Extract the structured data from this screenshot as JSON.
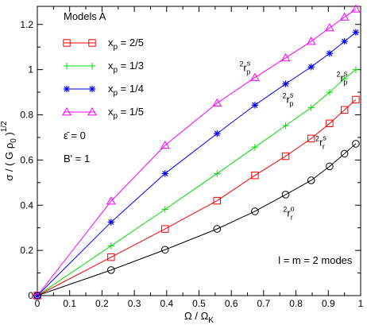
{
  "chart_data": {
    "type": "line",
    "title": "",
    "xlabel": {
      "main": "Ω / Ω",
      "sub": "K"
    },
    "ylabel": {
      "pre": "σ / ( G ρ",
      "sub": "0",
      "post": " )",
      "sup": "1/2"
    },
    "xlim": [
      0,
      1.0
    ],
    "ylim": [
      0,
      1.28
    ],
    "xticks": [
      0,
      0.1,
      0.2,
      0.3,
      0.4,
      0.5,
      0.6,
      0.7,
      0.8,
      0.9,
      1
    ],
    "xtick_labels": [
      "0",
      "0.1",
      "0.2",
      "0.3",
      "0.4",
      "0.5",
      "0.6",
      "0.7",
      "0.8",
      "0.9",
      "1"
    ],
    "yticks": [
      0,
      0.2,
      0.4,
      0.6,
      0.8,
      1.0,
      1.2
    ],
    "ytick_labels": [
      "0",
      "0.2",
      "0.4",
      "0.6",
      "0.8",
      "1",
      "1.2"
    ],
    "legend": {
      "placement": "top-left",
      "title": "Models A",
      "extra": [
        "ε̄ = 0",
        "B' = 1"
      ]
    },
    "series": [
      {
        "name": "x_p = 2/5",
        "label_main": "x",
        "label_sub": "p",
        "label_rest": " = 2/5",
        "color": "#ff0000",
        "marker": "square",
        "x": [
          0,
          0.228,
          0.395,
          0.556,
          0.673,
          0.768,
          0.847,
          0.904,
          0.95,
          0.985
        ],
        "y": [
          0,
          0.17,
          0.295,
          0.42,
          0.532,
          0.617,
          0.695,
          0.762,
          0.822,
          0.867
        ]
      },
      {
        "name": "x_p = 1/3",
        "label_main": "x",
        "label_sub": "p",
        "label_rest": " = 1/3",
        "color": "#00dd00",
        "marker": "plus",
        "x": [
          0,
          0.228,
          0.395,
          0.556,
          0.673,
          0.768,
          0.847,
          0.904,
          0.95,
          0.985
        ],
        "y": [
          0,
          0.22,
          0.382,
          0.54,
          0.657,
          0.752,
          0.832,
          0.9,
          0.96,
          1.0
        ]
      },
      {
        "name": "x_p = 1/4",
        "label_main": "x",
        "label_sub": "p",
        "label_rest": " = 1/4",
        "color": "#0000ff",
        "marker": "star",
        "x": [
          0,
          0.228,
          0.395,
          0.556,
          0.673,
          0.768,
          0.847,
          0.904,
          0.95,
          0.985
        ],
        "y": [
          0,
          0.325,
          0.54,
          0.717,
          0.843,
          0.937,
          1.012,
          1.072,
          1.125,
          1.165
        ]
      },
      {
        "name": "x_p = 1/5",
        "label_main": "x",
        "label_sub": "p",
        "label_rest": " = 1/5",
        "color": "#ff00ff",
        "marker": "triangle",
        "x": [
          0,
          0.228,
          0.395,
          0.556,
          0.673,
          0.768,
          0.847,
          0.904,
          0.95,
          0.985
        ],
        "y": [
          0,
          0.418,
          0.665,
          0.852,
          0.965,
          1.052,
          1.125,
          1.185,
          1.232,
          1.268
        ]
      },
      {
        "name": "",
        "label_main": "",
        "label_sub": "",
        "label_rest": "",
        "color": "#000000",
        "marker": "circle",
        "in_legend": false,
        "x": [
          0,
          0.228,
          0.395,
          0.556,
          0.673,
          0.768,
          0.847,
          0.904,
          0.95,
          0.985
        ],
        "y": [
          0,
          0.113,
          0.203,
          0.295,
          0.373,
          0.447,
          0.51,
          0.572,
          0.628,
          0.672
        ]
      }
    ],
    "annotations": [
      {
        "pre": "2",
        "base": "r",
        "sub": "p",
        "sup": "s",
        "x": 0.625,
        "y": 0.993
      },
      {
        "pre": "2",
        "base": "r",
        "sub": "p",
        "sup": "s",
        "x": 0.925,
        "y": 0.948
      },
      {
        "pre": "2",
        "base": "r",
        "sub": "p",
        "sup": "s",
        "x": 0.758,
        "y": 0.853
      },
      {
        "pre": "2",
        "base": "r",
        "sub": "r",
        "sup": "s",
        "x": 0.86,
        "y": 0.662
      },
      {
        "pre": "2",
        "base": "r",
        "sub": "r",
        "sup": "o",
        "x": 0.76,
        "y": 0.35
      },
      {
        "text": "l = m = 2 modes",
        "x": 0.745,
        "y": 0.14
      }
    ]
  }
}
